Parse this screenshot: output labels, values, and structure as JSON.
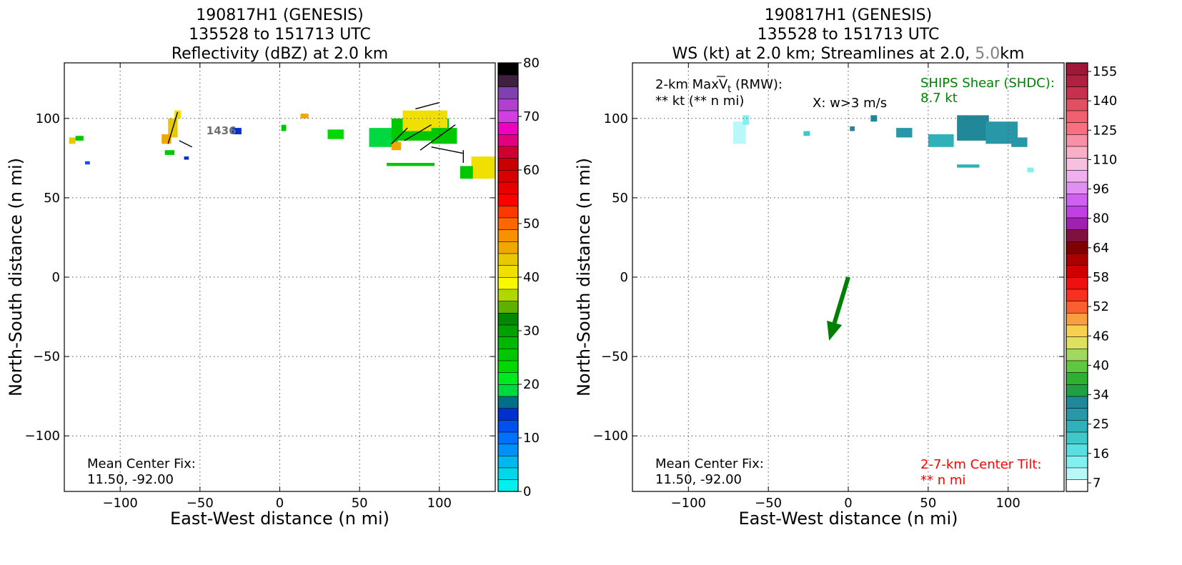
{
  "chart_data": [
    {
      "type": "heatmap",
      "title_lines": [
        "190817H1 (GENESIS)",
        "135528 to 151713 UTC",
        "Reflectivity (dBZ) at 2.0 km"
      ],
      "xlabel": "East-West distance (n mi)",
      "ylabel": "North-South distance (n mi)",
      "xlim": [
        -135,
        135
      ],
      "ylim": [
        -135,
        135
      ],
      "x_ticks": [
        -100,
        -50,
        0,
        50,
        100
      ],
      "y_ticks": [
        -100,
        -50,
        0,
        50,
        100
      ],
      "grid": true,
      "annotations": {
        "center_fix_label": "Mean Center Fix:",
        "center_fix_value": "11.50, -92.00",
        "flight_label": "1436"
      },
      "colorbar": {
        "ticks": [
          0,
          10,
          20,
          30,
          40,
          50,
          60,
          70,
          80
        ],
        "colors": [
          "#00f0f0",
          "#00d8e8",
          "#00b8f0",
          "#0090f8",
          "#0070ff",
          "#0050f0",
          "#0030d0",
          "#007088",
          "#00d840",
          "#00e820",
          "#00d800",
          "#00c800",
          "#00b800",
          "#00a000",
          "#008800",
          "#60b000",
          "#b0d800",
          "#f8f800",
          "#f0e000",
          "#e8c800",
          "#f0a800",
          "#f89000",
          "#ff6800",
          "#ff3800",
          "#ff0000",
          "#e80000",
          "#d80000",
          "#c80000",
          "#d00030",
          "#e00080",
          "#f000c0",
          "#d040e0",
          "#b040d0",
          "#8040b0",
          "#402040",
          "#000000"
        ]
      },
      "echo_cells": [
        {
          "x": -132,
          "y": 84,
          "w": 4,
          "h": 4,
          "color": "#e8c800"
        },
        {
          "x": -128,
          "y": 86,
          "w": 5,
          "h": 3,
          "color": "#00c800"
        },
        {
          "x": -122,
          "y": 71,
          "w": 3,
          "h": 2,
          "color": "#0050f0"
        },
        {
          "x": -70,
          "y": 88,
          "w": 6,
          "h": 12,
          "color": "#e8c800"
        },
        {
          "x": -74,
          "y": 84,
          "w": 6,
          "h": 6,
          "color": "#f0a800"
        },
        {
          "x": -66,
          "y": 100,
          "w": 4,
          "h": 5,
          "color": "#f0e000"
        },
        {
          "x": -72,
          "y": 77,
          "w": 6,
          "h": 3,
          "color": "#00c800"
        },
        {
          "x": -60,
          "y": 74,
          "w": 3,
          "h": 2,
          "color": "#0030d0"
        },
        {
          "x": -30,
          "y": 90,
          "w": 6,
          "h": 4,
          "color": "#0030d0"
        },
        {
          "x": 1,
          "y": 92,
          "w": 3,
          "h": 4,
          "color": "#00c800"
        },
        {
          "x": 13,
          "y": 100,
          "w": 5,
          "h": 3,
          "color": "#f0a800"
        },
        {
          "x": 30,
          "y": 87,
          "w": 10,
          "h": 6,
          "color": "#00d800"
        },
        {
          "x": 56,
          "y": 82,
          "w": 18,
          "h": 12,
          "color": "#00d840"
        },
        {
          "x": 70,
          "y": 86,
          "w": 36,
          "h": 14,
          "color": "#00c800"
        },
        {
          "x": 77,
          "y": 92,
          "w": 28,
          "h": 13,
          "color": "#f0e000"
        },
        {
          "x": 95,
          "y": 84,
          "w": 16,
          "h": 10,
          "color": "#00c800"
        },
        {
          "x": 70,
          "y": 80,
          "w": 6,
          "h": 5,
          "color": "#f0a800"
        },
        {
          "x": 67,
          "y": 70,
          "w": 30,
          "h": 2,
          "color": "#00c800"
        },
        {
          "x": 120,
          "y": 62,
          "w": 15,
          "h": 14,
          "color": "#f0e000"
        },
        {
          "x": 113,
          "y": 62,
          "w": 8,
          "h": 8,
          "color": "#00c800"
        }
      ]
    },
    {
      "type": "heatmap",
      "title_lines": [
        "190817H1 (GENESIS)",
        "135528 to 151713 UTC",
        "WS (kt) at 2.0 km; Streamlines at 2.0, ",
        "5.0",
        "km"
      ],
      "xlabel": "East-West distance (n mi)",
      "ylabel": "North-South distance (n mi)",
      "xlim": [
        -135,
        135
      ],
      "ylim": [
        -135,
        135
      ],
      "x_ticks": [
        -100,
        -50,
        0,
        50,
        100
      ],
      "y_ticks": [
        -100,
        -50,
        0,
        50,
        100
      ],
      "grid": true,
      "annotations": {
        "max_vt_label": "2-km Max",
        "max_vt_symbol": "V",
        "max_vt_sub": "t",
        "max_vt_suffix": " (RMW):",
        "max_vt_value": "** kt (** n mi)",
        "w_marker": "X: w>3 m/s",
        "ships_label": "SHIPS Shear (SHDC):",
        "ships_value": "8.7 kt",
        "center_fix_label": "Mean Center Fix:",
        "center_fix_value": "11.50, -92.00",
        "tilt_label": "2-7-km Center Tilt:",
        "tilt_value": "** n mi"
      },
      "shear_vector": {
        "from": [
          0,
          0
        ],
        "to": [
          -12,
          -40
        ],
        "color": "#008000"
      },
      "colorbar": {
        "ticks": [
          "7",
          "16",
          "25",
          "34",
          "40",
          "46",
          "52",
          "58",
          "64",
          "80",
          "96",
          "110",
          "125",
          "140",
          "155"
        ],
        "colors": [
          "#ffffff",
          "#b8f8f8",
          "#80f0f0",
          "#58e0e0",
          "#40c8c8",
          "#30b0b8",
          "#2898a8",
          "#208898",
          "#20a040",
          "#30b030",
          "#60c840",
          "#a0d860",
          "#e0e060",
          "#f8d050",
          "#f8a040",
          "#f86030",
          "#f83020",
          "#f01010",
          "#d00000",
          "#a80000",
          "#800000",
          "#801040",
          "#a020b0",
          "#c040e0",
          "#d060f0",
          "#e090f0",
          "#f0b0f0",
          "#f8c0e0",
          "#f8b0c8",
          "#f890a8",
          "#f87080",
          "#f06070",
          "#e05060",
          "#c83050",
          "#b02040",
          "#a01838"
        ]
      },
      "wind_cells": [
        {
          "x": -72,
          "y": 84,
          "w": 8,
          "h": 14,
          "color": "#b8f8f8"
        },
        {
          "x": -66,
          "y": 96,
          "w": 4,
          "h": 6,
          "color": "#80f0f0"
        },
        {
          "x": -28,
          "y": 89,
          "w": 4,
          "h": 3,
          "color": "#40c8c8"
        },
        {
          "x": 1,
          "y": 92,
          "w": 3,
          "h": 3,
          "color": "#208898"
        },
        {
          "x": 14,
          "y": 98,
          "w": 4,
          "h": 4,
          "color": "#208898"
        },
        {
          "x": 30,
          "y": 88,
          "w": 10,
          "h": 6,
          "color": "#2898a8"
        },
        {
          "x": 50,
          "y": 82,
          "w": 16,
          "h": 8,
          "color": "#30b0b8"
        },
        {
          "x": 68,
          "y": 86,
          "w": 20,
          "h": 16,
          "color": "#208898"
        },
        {
          "x": 86,
          "y": 84,
          "w": 20,
          "h": 14,
          "color": "#2898a8"
        },
        {
          "x": 102,
          "y": 82,
          "w": 10,
          "h": 6,
          "color": "#2898a8"
        },
        {
          "x": 68,
          "y": 69,
          "w": 14,
          "h": 2,
          "color": "#30b0b8"
        },
        {
          "x": 112,
          "y": 66,
          "w": 4,
          "h": 3,
          "color": "#80f0f0"
        }
      ]
    }
  ]
}
